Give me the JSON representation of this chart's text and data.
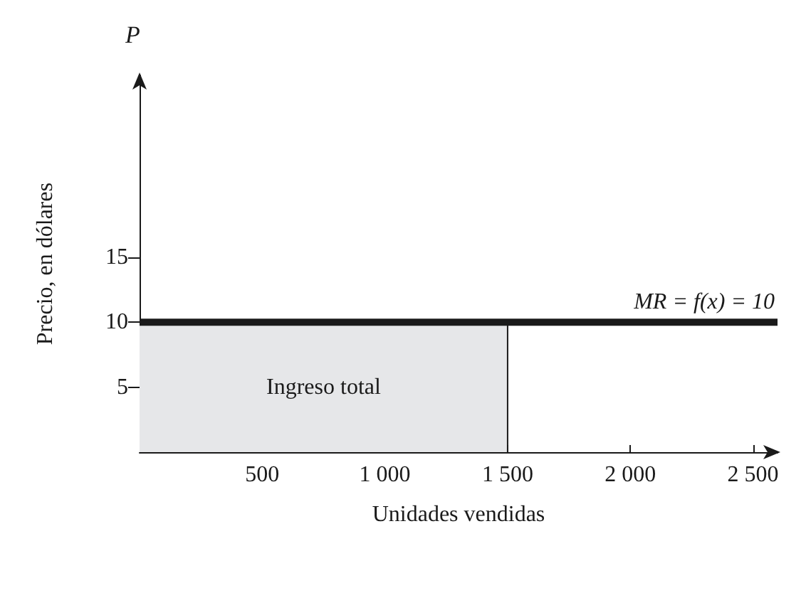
{
  "chart_data": {
    "type": "line",
    "xlabel": "Unidades vendidas",
    "ylabel": "Precio, en dólares",
    "annotations": [
      "P",
      "Ingreso total"
    ],
    "series": [
      {
        "type": "area",
        "color": "#e6e7e9",
        "x": [
          0,
          1500,
          1500
        ],
        "values": [
          10,
          10,
          0
        ]
      },
      {
        "name": "MR = f(x) = 10",
        "color": "#1a1a1a",
        "x": [
          0,
          2600
        ],
        "values": [
          10,
          10
        ]
      }
    ],
    "xlim": [
      0,
      2600
    ],
    "xticks": [
      500,
      {
        "value": 1000,
        "label": "1 000"
      },
      {
        "value": 1500,
        "label": "1 500"
      },
      {
        "value": 2000,
        "label": "2 000"
      },
      {
        "value": 2500,
        "label": "2 500"
      }
    ],
    "ylim": [
      0,
      29
    ],
    "yticks": [
      5,
      10,
      15
    ],
    "grid": false,
    "legend": false,
    "marker": "none",
    "line_style": "solid"
  }
}
